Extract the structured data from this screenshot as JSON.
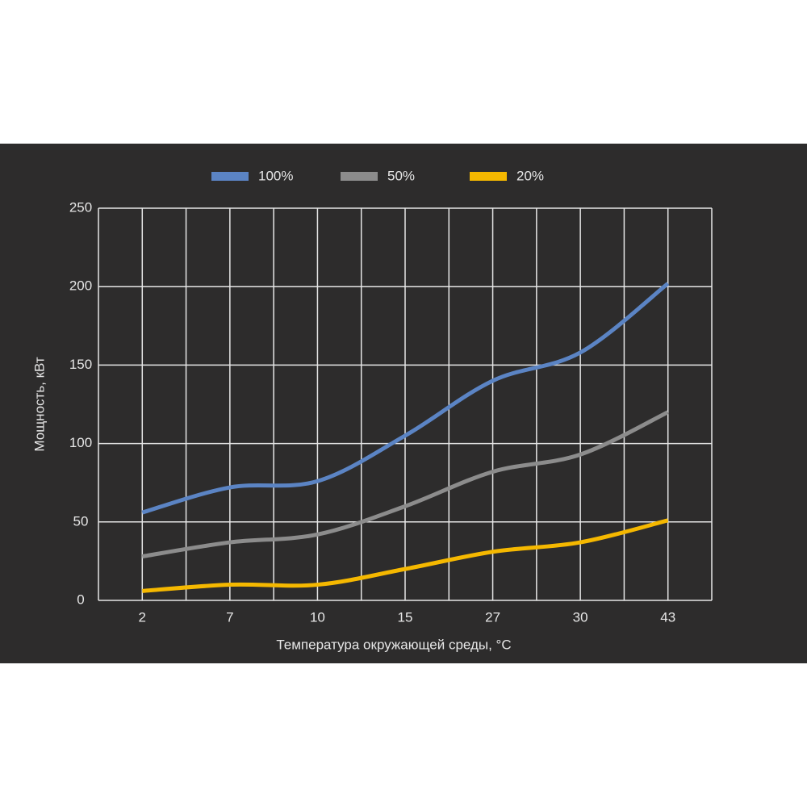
{
  "chart_data": {
    "type": "line",
    "categories": [
      "2",
      "7",
      "10",
      "15",
      "27",
      "30",
      "43"
    ],
    "series": [
      {
        "name": "100%",
        "color": "#5b84c4",
        "values": [
          56,
          72,
          76,
          105,
          140,
          158,
          202
        ]
      },
      {
        "name": "50%",
        "color": "#8c8c8c",
        "values": [
          28,
          37,
          42,
          60,
          82,
          93,
          120
        ]
      },
      {
        "name": "20%",
        "color": "#f5b800",
        "values": [
          6,
          10,
          10,
          20,
          31,
          37,
          51
        ]
      }
    ],
    "ylim": [
      0,
      250
    ],
    "yticks": [
      0,
      50,
      100,
      150,
      200,
      250
    ],
    "grid": true,
    "x_label": "Температура окружающей среды, °C",
    "y_label": "Мощность, кВт",
    "legend": "top"
  }
}
